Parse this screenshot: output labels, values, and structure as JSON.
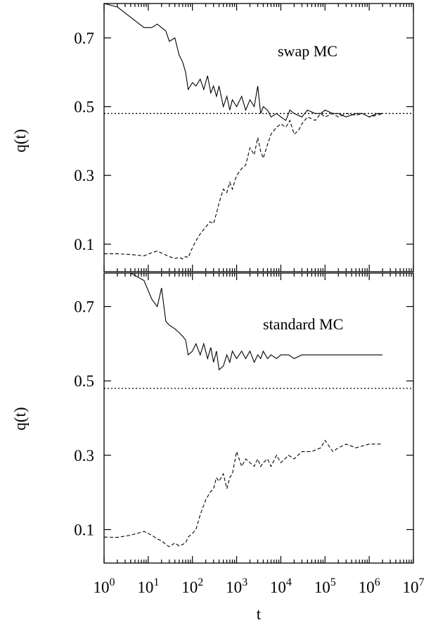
{
  "chart_data": [
    {
      "type": "line",
      "title": "",
      "annotation": "swap MC",
      "xlabel": "",
      "ylabel": "q(t)",
      "xscale": "log",
      "xlim": [
        1,
        10000000
      ],
      "ylim": [
        0.02,
        0.8
      ],
      "yticks": [
        0.1,
        0.3,
        0.5,
        0.7
      ],
      "ytick_labels": [
        "0.1",
        "0.3",
        "0.5",
        "0.7"
      ],
      "grid": false,
      "reference_line": {
        "y": 0.48,
        "style": "dotted"
      },
      "series": [
        {
          "style": "solid",
          "x": [
            1,
            2,
            4,
            8,
            12,
            16,
            20,
            25,
            30,
            40,
            50,
            60,
            70,
            80,
            100,
            120,
            150,
            180,
            220,
            260,
            300,
            350,
            400,
            500,
            600,
            700,
            800,
            1000,
            1300,
            1600,
            2000,
            2500,
            3000,
            3500,
            4000,
            5000,
            6000,
            8000,
            10000,
            13000,
            16000,
            20000,
            30000,
            40000,
            60000,
            80000,
            100000,
            150000,
            200000,
            300000,
            500000,
            700000,
            1000000,
            1500000,
            2000000
          ],
          "y": [
            0.8,
            0.79,
            0.76,
            0.73,
            0.73,
            0.74,
            0.73,
            0.72,
            0.69,
            0.7,
            0.65,
            0.63,
            0.6,
            0.55,
            0.57,
            0.56,
            0.58,
            0.55,
            0.59,
            0.54,
            0.56,
            0.53,
            0.56,
            0.5,
            0.53,
            0.49,
            0.52,
            0.5,
            0.53,
            0.49,
            0.52,
            0.5,
            0.56,
            0.48,
            0.5,
            0.49,
            0.47,
            0.48,
            0.47,
            0.46,
            0.49,
            0.48,
            0.47,
            0.49,
            0.48,
            0.48,
            0.49,
            0.48,
            0.48,
            0.47,
            0.48,
            0.48,
            0.47,
            0.48,
            0.48
          ]
        },
        {
          "style": "dashed",
          "x": [
            1,
            2,
            4,
            8,
            12,
            16,
            20,
            30,
            40,
            50,
            60,
            70,
            80,
            100,
            120,
            150,
            200,
            250,
            300,
            350,
            400,
            500,
            600,
            700,
            800,
            1000,
            1300,
            1600,
            2000,
            2500,
            3000,
            3500,
            4000,
            5000,
            6000,
            8000,
            10000,
            13000,
            16000,
            20000,
            25000,
            30000,
            40000,
            60000,
            80000,
            100000,
            150000,
            200000,
            300000,
            500000,
            700000,
            1000000,
            1500000,
            2000000
          ],
          "y": [
            0.072,
            0.072,
            0.07,
            0.066,
            0.075,
            0.08,
            0.074,
            0.064,
            0.058,
            0.062,
            0.057,
            0.064,
            0.061,
            0.09,
            0.11,
            0.13,
            0.15,
            0.165,
            0.16,
            0.19,
            0.22,
            0.26,
            0.25,
            0.28,
            0.26,
            0.3,
            0.32,
            0.33,
            0.38,
            0.36,
            0.41,
            0.37,
            0.35,
            0.39,
            0.42,
            0.44,
            0.45,
            0.44,
            0.46,
            0.42,
            0.43,
            0.45,
            0.47,
            0.46,
            0.48,
            0.47,
            0.48,
            0.47,
            0.48,
            0.475,
            0.48,
            0.47,
            0.475,
            0.48
          ]
        }
      ]
    },
    {
      "type": "line",
      "title": "",
      "annotation": "standard MC",
      "xlabel": "t",
      "ylabel": "q(t)",
      "xscale": "log",
      "xlim": [
        1,
        10000000
      ],
      "xticks": [
        1,
        10,
        100,
        1000,
        10000,
        100000,
        1000000,
        10000000
      ],
      "xtick_labels": [
        {
          "base": "10",
          "exp": "0"
        },
        {
          "base": "10",
          "exp": "1"
        },
        {
          "base": "10",
          "exp": "2"
        },
        {
          "base": "10",
          "exp": "3"
        },
        {
          "base": "10",
          "exp": "4"
        },
        {
          "base": "10",
          "exp": "5"
        },
        {
          "base": "10",
          "exp": "6"
        },
        {
          "base": "10",
          "exp": "7"
        }
      ],
      "ylim": [
        0.01,
        0.79
      ],
      "yticks": [
        0.1,
        0.3,
        0.5,
        0.7
      ],
      "ytick_labels": [
        "0.1",
        "0.3",
        "0.5",
        "0.7"
      ],
      "grid": false,
      "reference_line": {
        "y": 0.48,
        "style": "dotted"
      },
      "series": [
        {
          "style": "solid",
          "x": [
            1,
            2,
            4,
            8,
            12,
            16,
            20,
            25,
            30,
            40,
            50,
            60,
            70,
            80,
            100,
            120,
            150,
            180,
            220,
            260,
            300,
            350,
            400,
            500,
            600,
            700,
            800,
            1000,
            1300,
            1600,
            2000,
            2500,
            3000,
            3500,
            4000,
            5000,
            6000,
            8000,
            10000,
            15000,
            20000,
            30000,
            50000,
            100000,
            200000,
            500000,
            1000000,
            2000000
          ],
          "y": [
            0.79,
            0.79,
            0.79,
            0.77,
            0.72,
            0.7,
            0.75,
            0.66,
            0.65,
            0.64,
            0.63,
            0.62,
            0.61,
            0.57,
            0.58,
            0.6,
            0.57,
            0.6,
            0.56,
            0.59,
            0.55,
            0.58,
            0.53,
            0.54,
            0.57,
            0.55,
            0.58,
            0.56,
            0.58,
            0.56,
            0.58,
            0.55,
            0.57,
            0.56,
            0.58,
            0.56,
            0.57,
            0.56,
            0.57,
            0.57,
            0.56,
            0.57,
            0.57,
            0.57,
            0.57,
            0.57,
            0.57,
            0.57
          ]
        },
        {
          "style": "dashed",
          "x": [
            1,
            2,
            4,
            8,
            12,
            16,
            20,
            25,
            30,
            40,
            50,
            60,
            70,
            80,
            100,
            120,
            150,
            200,
            250,
            300,
            350,
            400,
            500,
            600,
            700,
            800,
            1000,
            1300,
            1600,
            2000,
            2500,
            3000,
            3500,
            4000,
            5000,
            6000,
            8000,
            10000,
            15000,
            20000,
            30000,
            50000,
            80000,
            100000,
            150000,
            200000,
            300000,
            500000,
            1000000,
            2000000
          ],
          "y": [
            0.08,
            0.079,
            0.085,
            0.095,
            0.085,
            0.075,
            0.07,
            0.06,
            0.054,
            0.064,
            0.056,
            0.06,
            0.064,
            0.08,
            0.09,
            0.1,
            0.14,
            0.18,
            0.2,
            0.21,
            0.24,
            0.23,
            0.25,
            0.21,
            0.24,
            0.25,
            0.31,
            0.27,
            0.29,
            0.28,
            0.27,
            0.29,
            0.27,
            0.28,
            0.29,
            0.27,
            0.3,
            0.28,
            0.3,
            0.29,
            0.31,
            0.31,
            0.32,
            0.34,
            0.31,
            0.32,
            0.33,
            0.32,
            0.33,
            0.33
          ]
        }
      ]
    }
  ]
}
